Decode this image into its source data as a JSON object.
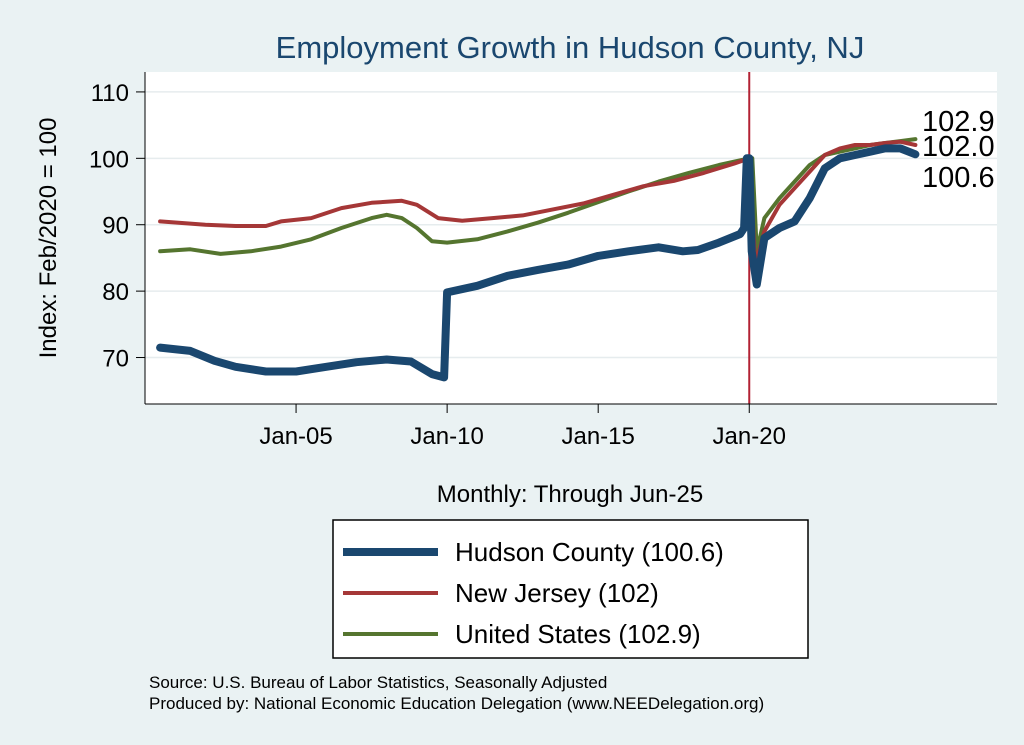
{
  "chart_data": {
    "type": "line",
    "title": "Employment Growth in Hudson  County, NJ",
    "xlabel": "Monthly: Through Jun-25",
    "ylabel": "Index: Feb/2020 = 100",
    "ylim": [
      63,
      113
    ],
    "xlim": [
      2000.0,
      2028.2
    ],
    "y_ticks": [
      70,
      80,
      90,
      100,
      110
    ],
    "x_ticks": [
      {
        "value": 2005.0,
        "label": "Jan-05"
      },
      {
        "value": 2010.0,
        "label": "Jan-10"
      },
      {
        "value": 2015.0,
        "label": "Jan-15"
      },
      {
        "value": 2020.0,
        "label": "Jan-20"
      }
    ],
    "reference_line": {
      "x": 2020.0,
      "color": "#b22234"
    },
    "grid": true,
    "series": [
      {
        "name": "Hudson County",
        "legend_label": "Hudson  County (100.6)",
        "color": "#1a476f",
        "end_value": 100.6,
        "end_label": "100.6",
        "points": [
          [
            2000.5,
            71.5
          ],
          [
            2001.5,
            71.0
          ],
          [
            2002.3,
            69.5
          ],
          [
            2003.0,
            68.6
          ],
          [
            2004.0,
            67.9
          ],
          [
            2005.0,
            67.9
          ],
          [
            2006.0,
            68.6
          ],
          [
            2007.0,
            69.3
          ],
          [
            2008.0,
            69.7
          ],
          [
            2008.8,
            69.4
          ],
          [
            2009.5,
            67.5
          ],
          [
            2009.9,
            67.0
          ],
          [
            2010.0,
            79.8
          ],
          [
            2011.0,
            80.8
          ],
          [
            2012.0,
            82.3
          ],
          [
            2013.0,
            83.2
          ],
          [
            2014.0,
            84.0
          ],
          [
            2015.0,
            85.3
          ],
          [
            2016.0,
            86.0
          ],
          [
            2017.0,
            86.6
          ],
          [
            2017.8,
            86.0
          ],
          [
            2018.3,
            86.2
          ],
          [
            2019.0,
            87.3
          ],
          [
            2019.7,
            88.6
          ],
          [
            2019.83,
            89.5
          ],
          [
            2019.92,
            100.0
          ],
          [
            2020.0,
            100.0
          ],
          [
            2020.08,
            86.0
          ],
          [
            2020.25,
            81.0
          ],
          [
            2020.5,
            88.0
          ],
          [
            2021.0,
            89.5
          ],
          [
            2021.5,
            90.5
          ],
          [
            2022.0,
            94.0
          ],
          [
            2022.5,
            98.5
          ],
          [
            2023.0,
            100.0
          ],
          [
            2023.5,
            100.5
          ],
          [
            2024.0,
            101.0
          ],
          [
            2024.5,
            101.5
          ],
          [
            2025.0,
            101.5
          ],
          [
            2025.5,
            100.6
          ]
        ]
      },
      {
        "name": "New Jersey",
        "legend_label": "New Jersey (102)",
        "color": "#a53737",
        "end_value": 102.0,
        "end_label": "102.0",
        "points": [
          [
            2000.5,
            90.5
          ],
          [
            2002.0,
            90.0
          ],
          [
            2003.0,
            89.8
          ],
          [
            2004.0,
            89.8
          ],
          [
            2004.5,
            90.5
          ],
          [
            2005.5,
            91.0
          ],
          [
            2006.5,
            92.5
          ],
          [
            2007.5,
            93.3
          ],
          [
            2008.5,
            93.6
          ],
          [
            2009.0,
            93.0
          ],
          [
            2009.7,
            91.0
          ],
          [
            2010.5,
            90.6
          ],
          [
            2011.5,
            91.0
          ],
          [
            2012.5,
            91.4
          ],
          [
            2013.5,
            92.3
          ],
          [
            2014.5,
            93.2
          ],
          [
            2015.5,
            94.5
          ],
          [
            2016.5,
            95.8
          ],
          [
            2017.5,
            96.6
          ],
          [
            2018.5,
            97.8
          ],
          [
            2019.5,
            99.2
          ],
          [
            2020.0,
            100.0
          ],
          [
            2020.2,
            84.0
          ],
          [
            2020.5,
            89.0
          ],
          [
            2021.0,
            93.0
          ],
          [
            2021.5,
            95.5
          ],
          [
            2022.0,
            98.0
          ],
          [
            2022.5,
            100.5
          ],
          [
            2023.0,
            101.5
          ],
          [
            2023.5,
            102.0
          ],
          [
            2024.0,
            102.0
          ],
          [
            2024.5,
            102.3
          ],
          [
            2025.0,
            102.5
          ],
          [
            2025.5,
            102.0
          ]
        ]
      },
      {
        "name": "United States",
        "legend_label": "United States (102.9)",
        "color": "#55752f",
        "end_value": 102.9,
        "end_label": "102.9",
        "points": [
          [
            2000.5,
            86.0
          ],
          [
            2001.5,
            86.3
          ],
          [
            2002.5,
            85.6
          ],
          [
            2003.5,
            86.0
          ],
          [
            2004.5,
            86.7
          ],
          [
            2005.5,
            87.8
          ],
          [
            2006.5,
            89.5
          ],
          [
            2007.5,
            91.0
          ],
          [
            2008.0,
            91.5
          ],
          [
            2008.5,
            91.0
          ],
          [
            2009.0,
            89.5
          ],
          [
            2009.5,
            87.5
          ],
          [
            2010.0,
            87.3
          ],
          [
            2011.0,
            87.8
          ],
          [
            2012.0,
            89.0
          ],
          [
            2013.0,
            90.3
          ],
          [
            2014.0,
            91.8
          ],
          [
            2015.0,
            93.4
          ],
          [
            2016.0,
            95.0
          ],
          [
            2017.0,
            96.5
          ],
          [
            2018.0,
            97.8
          ],
          [
            2019.0,
            99.0
          ],
          [
            2020.0,
            100.0
          ],
          [
            2020.1,
            100.0
          ],
          [
            2020.25,
            86.0
          ],
          [
            2020.5,
            91.0
          ],
          [
            2021.0,
            94.0
          ],
          [
            2021.5,
            96.5
          ],
          [
            2022.0,
            99.0
          ],
          [
            2022.5,
            100.5
          ],
          [
            2023.0,
            101.0
          ],
          [
            2023.5,
            101.5
          ],
          [
            2024.0,
            102.0
          ],
          [
            2024.5,
            102.3
          ],
          [
            2025.0,
            102.6
          ],
          [
            2025.5,
            102.9
          ]
        ]
      }
    ]
  },
  "notes": {
    "source": "Source: U.S. Bureau of Labor Statistics, Seasonally Adjusted",
    "produced_by": "Produced by: National Economic Education Delegation (www.NEEDelegation.org)"
  }
}
